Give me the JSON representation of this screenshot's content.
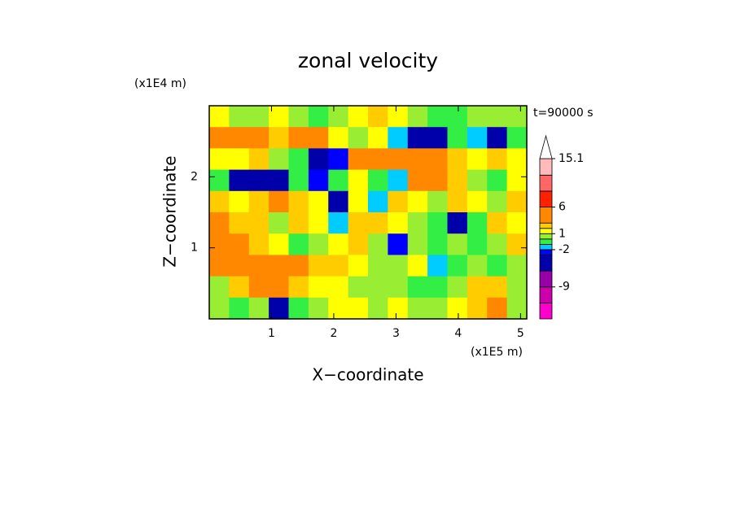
{
  "chart_data": {
    "type": "contour",
    "title": "zonal velocity",
    "annotation": "t=90000 s",
    "xlabel": "X−coordinate",
    "ylabel": "Z−coordinate",
    "xunit": "(x1E5 m)",
    "yunit": "(x1E4 m)",
    "xlim": [
      0,
      5.1
    ],
    "ylim": [
      0,
      3.0
    ],
    "xticks": [
      1,
      2,
      3,
      4,
      5
    ],
    "yticks": [
      1,
      2
    ],
    "z": [
      [
        1,
        0,
        0.5,
        1.5,
        0,
        -0.5,
        0.5,
        1.5,
        2,
        1,
        0,
        -1,
        -0.5,
        0,
        0.5,
        0
      ],
      [
        3,
        4,
        4,
        2.5,
        5,
        4,
        1,
        0,
        1,
        -1.5,
        -4,
        -4,
        -1,
        -2,
        -4,
        -1
      ],
      [
        1,
        1,
        2,
        0.5,
        -0.5,
        -5,
        -3,
        4,
        5,
        4,
        5,
        3,
        2,
        1,
        2,
        1
      ],
      [
        -1,
        -5,
        -5,
        -4,
        -1,
        -3,
        -1,
        1,
        -1,
        -2,
        3,
        3,
        2,
        0,
        -1,
        1
      ],
      [
        2,
        1,
        2,
        3,
        2,
        1,
        -5,
        1,
        -2,
        2,
        1,
        0,
        2,
        1,
        0,
        2
      ],
      [
        3,
        2,
        2,
        0,
        2,
        1,
        -2,
        2,
        2,
        1,
        0,
        -0.5,
        -5,
        -1,
        2,
        1
      ],
      [
        3,
        4,
        2,
        1.5,
        -1,
        0,
        1,
        2,
        0,
        -3,
        0,
        -1,
        0,
        -1,
        0,
        2
      ],
      [
        4,
        3,
        4,
        5,
        3,
        2,
        2,
        1,
        0,
        0,
        1,
        -2,
        -1,
        0,
        -1,
        0
      ],
      [
        0,
        2,
        4,
        4,
        2,
        1,
        1,
        0,
        0,
        0,
        -1,
        -1,
        0,
        2,
        2,
        0
      ],
      [
        0,
        -1,
        0,
        -4,
        -1,
        0,
        1,
        1,
        0,
        1,
        0,
        0,
        1,
        2,
        3,
        0
      ]
    ],
    "levels": [
      -15,
      -12,
      -9,
      -6,
      -3,
      -2,
      -1,
      0,
      1,
      2,
      3,
      6,
      9,
      12,
      15.1
    ],
    "colors": [
      "#ff00cc",
      "#cc00aa",
      "#9900aa",
      "#0000aa",
      "#0000ff",
      "#00ccff",
      "#33ee44",
      "#99ee33",
      "#ffff00",
      "#ffcc00",
      "#ff8800",
      "#ff2200",
      "#ff6666",
      "#ffbbbb"
    ],
    "over_color": "#ffffff",
    "colorbar_ticks": [
      15.1,
      6,
      1,
      -2,
      -9
    ]
  }
}
